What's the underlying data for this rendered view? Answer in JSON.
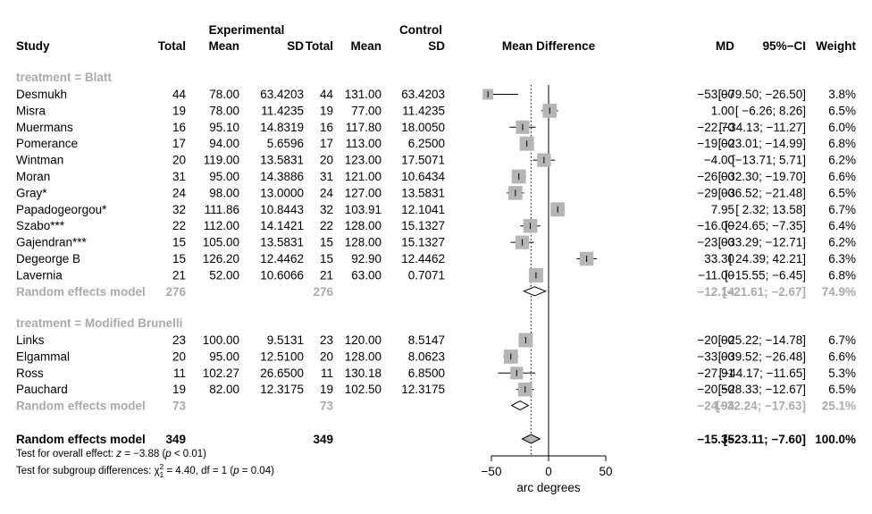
{
  "chart_data": {
    "type": "forest",
    "title": "",
    "headers": {
      "study": "Study",
      "experimental": "Experimental",
      "control": "Control",
      "total": "Total",
      "mean": "Mean",
      "sd": "SD",
      "mean_difference": "Mean Difference",
      "md": "MD",
      "ci": "95%−CI",
      "weight": "Weight"
    },
    "xlabel": "arc degrees",
    "xlim": [
      -56,
      56
    ],
    "xticks": [
      -50,
      0,
      50
    ],
    "xtick_labels": [
      "−50",
      "0",
      "50"
    ],
    "overall_line": -15.35,
    "groups": [
      {
        "label": "treatment = Blatt",
        "studies": [
          {
            "name": "Desmukh",
            "n1": "44",
            "m1": "78.00",
            "sd1": "63.4203",
            "n2": "44",
            "m2": "131.00",
            "sd2": "63.4203",
            "md": -53.0,
            "lo": -79.5,
            "hi": -26.5,
            "md_text": "−53.00",
            "ci_text": "[−79.50; −26.50]",
            "weight": "3.8%",
            "w": 3.8
          },
          {
            "name": "Misra",
            "n1": "19",
            "m1": "78.00",
            "sd1": "11.4235",
            "n2": "19",
            "m2": "77.00",
            "sd2": "11.4235",
            "md": 1.0,
            "lo": -6.26,
            "hi": 8.26,
            "md_text": "1.00",
            "ci_text": "[ −6.26;   8.26]",
            "weight": "6.5%",
            "w": 6.5
          },
          {
            "name": "Muermans",
            "n1": "16",
            "m1": "95.10",
            "sd1": "14.8319",
            "n2": "16",
            "m2": "117.80",
            "sd2": "18.0050",
            "md": -22.7,
            "lo": -34.13,
            "hi": -11.27,
            "md_text": "−22.70",
            "ci_text": "[−34.13; −11.27]",
            "weight": "6.0%",
            "w": 6.0
          },
          {
            "name": "Pomerance",
            "n1": "17",
            "m1": "94.00",
            "sd1": "5.6596",
            "n2": "17",
            "m2": "113.00",
            "sd2": "6.2500",
            "md": -19.0,
            "lo": -23.01,
            "hi": -14.99,
            "md_text": "−19.00",
            "ci_text": "[−23.01; −14.99]",
            "weight": "6.8%",
            "w": 6.8
          },
          {
            "name": "Wintman",
            "n1": "20",
            "m1": "119.00",
            "sd1": "13.5831",
            "n2": "20",
            "m2": "123.00",
            "sd2": "17.5071",
            "md": -4.0,
            "lo": -13.71,
            "hi": 5.71,
            "md_text": "−4.00",
            "ci_text": "[−13.71;   5.71]",
            "weight": "6.2%",
            "w": 6.2
          },
          {
            "name": "Moran",
            "n1": "31",
            "m1": "95.00",
            "sd1": "14.3886",
            "n2": "31",
            "m2": "121.00",
            "sd2": "10.6434",
            "md": -26.0,
            "lo": -32.3,
            "hi": -19.7,
            "md_text": "−26.00",
            "ci_text": "[−32.30; −19.70]",
            "weight": "6.6%",
            "w": 6.6
          },
          {
            "name": "Gray*",
            "n1": "24",
            "m1": "98.00",
            "sd1": "13.0000",
            "n2": "24",
            "m2": "127.00",
            "sd2": "13.5831",
            "md": -29.0,
            "lo": -36.52,
            "hi": -21.48,
            "md_text": "−29.00",
            "ci_text": "[−36.52; −21.48]",
            "weight": "6.5%",
            "w": 6.5
          },
          {
            "name": "Papadogeorgou*",
            "n1": "32",
            "m1": "111.86",
            "sd1": "10.8443",
            "n2": "32",
            "m2": "103.91",
            "sd2": "12.1041",
            "md": 7.95,
            "lo": 2.32,
            "hi": 13.58,
            "md_text": "7.95",
            "ci_text": "[  2.32;  13.58]",
            "weight": "6.7%",
            "w": 6.7
          },
          {
            "name": "Szabo***",
            "n1": "22",
            "m1": "112.00",
            "sd1": "14.1421",
            "n2": "22",
            "m2": "128.00",
            "sd2": "15.1327",
            "md": -16.0,
            "lo": -24.65,
            "hi": -7.35,
            "md_text": "−16.00",
            "ci_text": "[−24.65;  −7.35]",
            "weight": "6.4%",
            "w": 6.4
          },
          {
            "name": "Gajendran***",
            "n1": "15",
            "m1": "105.00",
            "sd1": "13.5831",
            "n2": "15",
            "m2": "128.00",
            "sd2": "15.1327",
            "md": -23.0,
            "lo": -33.29,
            "hi": -12.71,
            "md_text": "−23.00",
            "ci_text": "[−33.29; −12.71]",
            "weight": "6.2%",
            "w": 6.2
          },
          {
            "name": "Degeorge B",
            "n1": "15",
            "m1": "126.20",
            "sd1": "12.4462",
            "n2": "15",
            "m2": "92.90",
            "sd2": "12.4462",
            "md": 33.3,
            "lo": 24.39,
            "hi": 42.21,
            "md_text": "33.30",
            "ci_text": "[ 24.39;  42.21]",
            "weight": "6.3%",
            "w": 6.3
          },
          {
            "name": "Lavernia",
            "n1": "21",
            "m1": "52.00",
            "sd1": "10.6066",
            "n2": "21",
            "m2": "63.00",
            "sd2": "0.7071",
            "md": -11.0,
            "lo": -15.55,
            "hi": -6.45,
            "md_text": "−11.00",
            "ci_text": "[−15.55;  −6.45]",
            "weight": "6.8%",
            "w": 6.8
          }
        ],
        "subtotal": {
          "label": "Random effects model",
          "n1": "276",
          "n2": "276",
          "md": -12.14,
          "lo": -21.61,
          "hi": -2.67,
          "md_text": "−12.14",
          "ci_text": "[−21.61;  −2.67]",
          "weight": "74.9%"
        }
      },
      {
        "label": "treatment = Modified Brunelli",
        "studies": [
          {
            "name": "Links",
            "n1": "23",
            "m1": "100.00",
            "sd1": "9.5131",
            "n2": "23",
            "m2": "120.00",
            "sd2": "8.5147",
            "md": -20.0,
            "lo": -25.22,
            "hi": -14.78,
            "md_text": "−20.00",
            "ci_text": "[−25.22; −14.78]",
            "weight": "6.7%",
            "w": 6.7
          },
          {
            "name": "Elgammal",
            "n1": "20",
            "m1": "95.00",
            "sd1": "12.5100",
            "n2": "20",
            "m2": "128.00",
            "sd2": "8.0623",
            "md": -33.0,
            "lo": -39.52,
            "hi": -26.48,
            "md_text": "−33.00",
            "ci_text": "[−39.52; −26.48]",
            "weight": "6.6%",
            "w": 6.6
          },
          {
            "name": "Ross",
            "n1": "11",
            "m1": "102.27",
            "sd1": "26.6500",
            "n2": "11",
            "m2": "130.18",
            "sd2": "6.8500",
            "md": -27.91,
            "lo": -44.17,
            "hi": -11.65,
            "md_text": "−27.91",
            "ci_text": "[−44.17; −11.65]",
            "weight": "5.3%",
            "w": 5.3
          },
          {
            "name": "Pauchard",
            "n1": "19",
            "m1": "82.00",
            "sd1": "12.3175",
            "n2": "19",
            "m2": "102.50",
            "sd2": "12.3175",
            "md": -20.5,
            "lo": -28.33,
            "hi": -12.67,
            "md_text": "−20.50",
            "ci_text": "[−28.33; −12.67]",
            "weight": "6.5%",
            "w": 6.5
          }
        ],
        "subtotal": {
          "label": "Random effects model",
          "n1": "73",
          "n2": "73",
          "md": -24.94,
          "lo": -32.24,
          "hi": -17.63,
          "md_text": "−24.94",
          "ci_text": "[−32.24; −17.63]",
          "weight": "25.1%"
        }
      }
    ],
    "overall": {
      "label": "Random effects model",
      "n1": "349",
      "n2": "349",
      "md": -15.35,
      "lo": -23.11,
      "hi": -7.6,
      "md_text": "−15.35",
      "ci_text": "[−23.11;  −7.60]",
      "weight": "100.0%"
    },
    "tests": [
      {
        "parts": [
          "Test for overall effect: ",
          "z",
          " = −3.88 (",
          "p",
          " < 0.01)"
        ]
      },
      {
        "parts": [
          "Test for subgroup differences: ",
          "χ",
          "2",
          "1",
          " = 4.40, df = 1 (",
          "p",
          " = 0.04)"
        ]
      }
    ]
  }
}
